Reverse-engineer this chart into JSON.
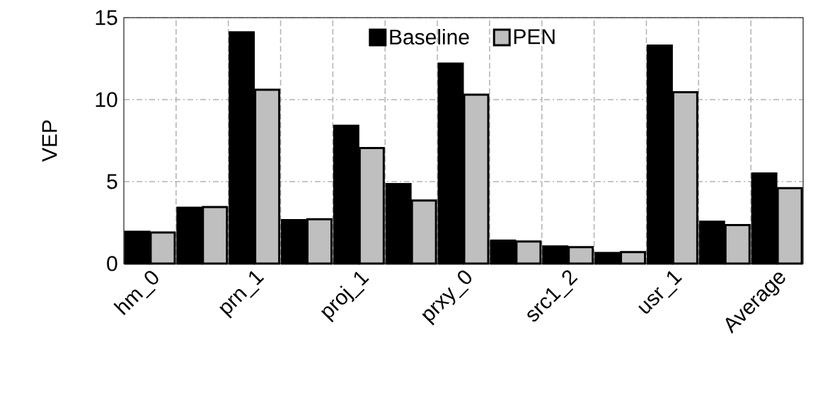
{
  "chart_data": {
    "type": "bar",
    "ylabel": "VEP",
    "categories": [
      "hm_0",
      null,
      "prn_1",
      null,
      "proj_1",
      null,
      "prxy_0",
      null,
      "src1_2",
      null,
      "usr_1",
      null,
      "Average"
    ],
    "series": [
      {
        "name": "Baseline",
        "color": "#000000",
        "values": [
          1.94,
          3.4,
          14.1,
          2.65,
          8.4,
          4.85,
          12.2,
          1.4,
          1.05,
          0.65,
          13.3,
          2.55,
          5.5
        ]
      },
      {
        "name": "PEN",
        "color": "#bfbfbf",
        "values": [
          1.9,
          3.45,
          10.6,
          2.7,
          7.05,
          3.85,
          10.3,
          1.35,
          1.0,
          0.7,
          10.45,
          2.35,
          4.6
        ]
      }
    ],
    "ylim": [
      0,
      15
    ],
    "yticks": [
      0,
      5,
      10,
      15
    ],
    "grid": true,
    "legend": "top"
  }
}
